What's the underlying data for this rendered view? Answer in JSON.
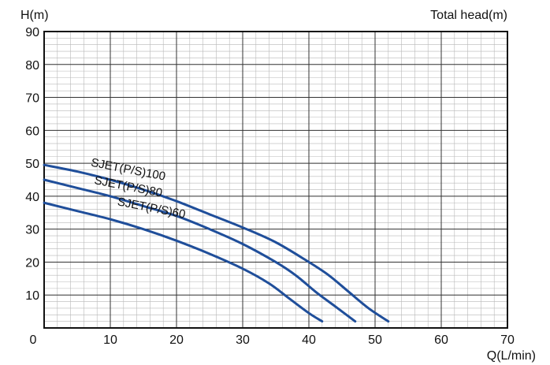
{
  "chart_data": {
    "type": "line",
    "y_axis_label": "H(m)",
    "title_right": "Total head(m)",
    "x_axis_label": "Q(L/min)",
    "xlim": [
      0,
      70
    ],
    "ylim": [
      0,
      90
    ],
    "x_ticks": [
      0,
      10,
      20,
      30,
      40,
      50,
      60,
      70
    ],
    "y_ticks": [
      10,
      20,
      30,
      40,
      50,
      60,
      70,
      80,
      90
    ],
    "grid": true,
    "minor_grid_step": 2,
    "colors": {
      "curve": "#1f4e9a",
      "major_grid": "#333333",
      "minor_grid": "#b8b8b8",
      "frame": "#111111"
    },
    "series": [
      {
        "name": "SJET(P/S)100",
        "points": [
          [
            0,
            49.5
          ],
          [
            5,
            47.5
          ],
          [
            10,
            45
          ],
          [
            15,
            42
          ],
          [
            20,
            38.5
          ],
          [
            25,
            34.5
          ],
          [
            30,
            30.5
          ],
          [
            35,
            26
          ],
          [
            40,
            20
          ],
          [
            43,
            16
          ],
          [
            46,
            11
          ],
          [
            49,
            6
          ],
          [
            52,
            2
          ]
        ]
      },
      {
        "name": "SJET(P/S)80",
        "points": [
          [
            0,
            45
          ],
          [
            5,
            42.5
          ],
          [
            10,
            40
          ],
          [
            15,
            37
          ],
          [
            20,
            34
          ],
          [
            25,
            30
          ],
          [
            30,
            25.5
          ],
          [
            35,
            20
          ],
          [
            38,
            16
          ],
          [
            41,
            11
          ],
          [
            44,
            6.5
          ],
          [
            47,
            2
          ]
        ]
      },
      {
        "name": "SJET(P/S)60",
        "points": [
          [
            0,
            38
          ],
          [
            5,
            35.5
          ],
          [
            10,
            33
          ],
          [
            15,
            30
          ],
          [
            20,
            26.5
          ],
          [
            25,
            22.5
          ],
          [
            30,
            18
          ],
          [
            34,
            13.5
          ],
          [
            37,
            9
          ],
          [
            40,
            4.5
          ],
          [
            42,
            2
          ]
        ]
      }
    ]
  }
}
